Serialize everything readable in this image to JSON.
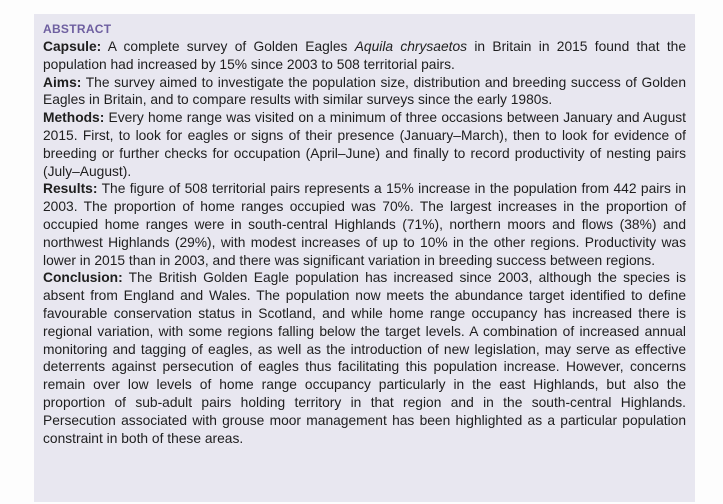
{
  "theme": {
    "accent": "#6e5fa0",
    "box_background": "#e8e7f0",
    "page_background": "#fdfdfd",
    "text_color": "#1e1e1e"
  },
  "abstract": {
    "heading": "ABSTRACT",
    "paragraphs": [
      {
        "label": "Capsule:",
        "pre": " A complete survey of Golden Eagles ",
        "italic": "Aquila chrysaetos",
        "post": " in Britain in 2015 found that the population had increased by 15% since 2003 to 508 territorial pairs."
      },
      {
        "label": "Aims:",
        "text": " The survey aimed to investigate the population size, distribution and breeding success of Golden Eagles in Britain, and to compare results with similar surveys since the early 1980s."
      },
      {
        "label": "Methods:",
        "text": " Every home range was visited on a minimum of three occasions between January and August 2015. First, to look for eagles or signs of their presence (January–March), then to look for evidence of breeding or further checks for occupation (April–June) and finally to record productivity of nesting pairs (July–August)."
      },
      {
        "label": "Results:",
        "text": " The figure of 508 territorial pairs represents a 15% increase in the population from 442 pairs in 2003. The proportion of home ranges occupied was 70%. The largest increases in the proportion of occupied home ranges were in south-central Highlands (71%), northern moors and flows (38%) and northwest Highlands (29%), with modest increases of up to 10% in the other regions. Productivity was lower in 2015 than in 2003, and there was significant variation in breeding success between regions."
      },
      {
        "label": "Conclusion:",
        "text": " The British Golden Eagle population has increased since 2003, although the species is absent from England and Wales. The population now meets the abundance target identified to define favourable conservation status in Scotland, and while home range occupancy has increased there is regional variation, with some regions falling below the target levels. A combination of increased annual monitoring and tagging of eagles, as well as the introduction of new legislation, may serve as effective deterrents against persecution of eagles thus facilitating this population increase. However, concerns remain over low levels of home range occupancy particularly in the east Highlands, but also the proportion of sub-adult pairs holding territory in that region and in the south-central Highlands. Persecution associated with grouse moor management has been highlighted as a particular population constraint in both of these areas."
      }
    ]
  }
}
